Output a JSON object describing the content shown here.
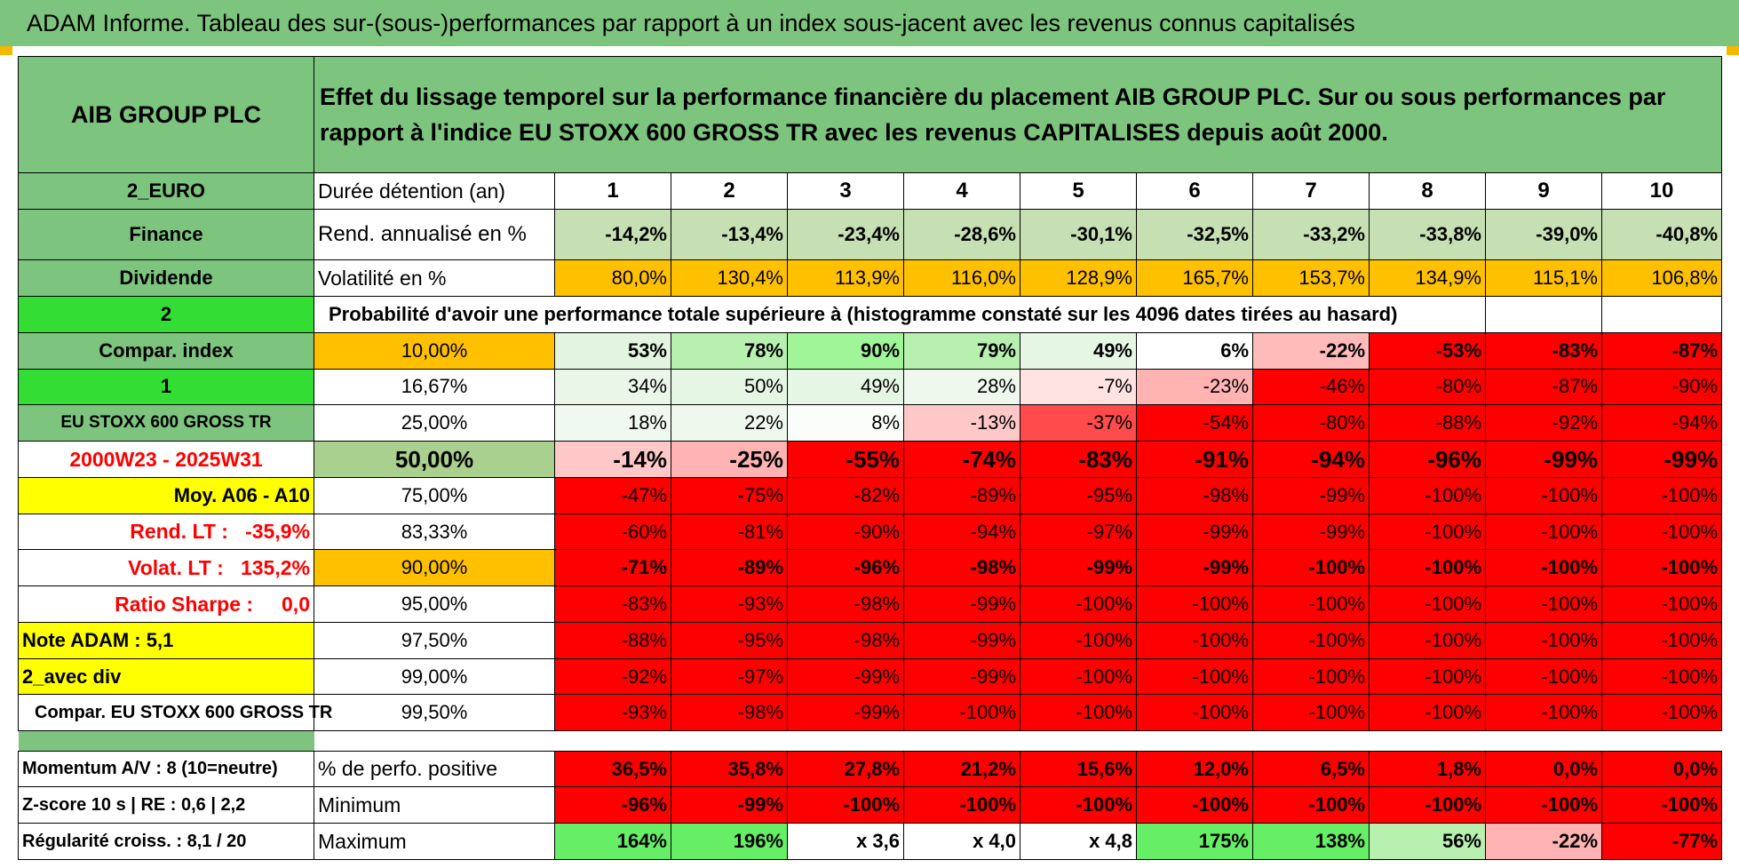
{
  "banner": "ADAM Informe. Tableau des sur-(sous-)performances par rapport à un index sous-jacent avec les revenus connus capitalisés",
  "header": {
    "company": "AIB GROUP PLC",
    "description": "Effet du lissage temporel sur la performance financière du placement AIB GROUP PLC. Sur ou sous performances par rapport à l'indice EU STOXX 600 GROSS TR avec les revenus CAPITALISES depuis août 2000."
  },
  "colors": {
    "green_header": "#7dc57f",
    "bright_green": "#33dd33",
    "yellow": "#ffff00",
    "orange": "#ffc000",
    "red": "#ff0000"
  },
  "rows": [
    {
      "left": "2_EURO",
      "left_bg": "#7dc57f",
      "label": "Durée détention (an)",
      "cells": [
        {
          "t": "1",
          "bg": "#ffffff"
        },
        {
          "t": "2",
          "bg": "#ffffff"
        },
        {
          "t": "3",
          "bg": "#ffffff"
        },
        {
          "t": "4",
          "bg": "#ffffff"
        },
        {
          "t": "5",
          "bg": "#ffffff"
        },
        {
          "t": "6",
          "bg": "#ffffff"
        },
        {
          "t": "7",
          "bg": "#ffffff"
        },
        {
          "t": "8",
          "bg": "#ffffff"
        },
        {
          "t": "9",
          "bg": "#ffffff"
        },
        {
          "t": "10",
          "bg": "#ffffff"
        }
      ]
    },
    {
      "left": "Finance",
      "left_bg": "#7dc57f",
      "label": "Rend. annualisé en %",
      "cells": [
        {
          "t": "-14,2%",
          "bg": "#c6e0b4"
        },
        {
          "t": "-13,4%",
          "bg": "#c6e0b4"
        },
        {
          "t": "-23,4%",
          "bg": "#c6e0b4"
        },
        {
          "t": "-28,6%",
          "bg": "#c6e0b4"
        },
        {
          "t": "-30,1%",
          "bg": "#c6e0b4"
        },
        {
          "t": "-32,5%",
          "bg": "#c6e0b4"
        },
        {
          "t": "-33,2%",
          "bg": "#c6e0b4"
        },
        {
          "t": "-33,8%",
          "bg": "#c6e0b4"
        },
        {
          "t": "-39,0%",
          "bg": "#c6e0b4"
        },
        {
          "t": "-40,8%",
          "bg": "#c6e0b4"
        }
      ]
    },
    {
      "left": "Dividende",
      "left_bg": "#7dc57f",
      "label": "Volatilité en %",
      "cells": [
        {
          "t": "80,0%",
          "bg": "#ffc000"
        },
        {
          "t": "130,4%",
          "bg": "#ffc000"
        },
        {
          "t": "113,9%",
          "bg": "#ffc000"
        },
        {
          "t": "116,0%",
          "bg": "#ffc000"
        },
        {
          "t": "128,9%",
          "bg": "#ffc000"
        },
        {
          "t": "165,7%",
          "bg": "#ffc000"
        },
        {
          "t": "153,7%",
          "bg": "#ffc000"
        },
        {
          "t": "134,9%",
          "bg": "#ffc000"
        },
        {
          "t": "115,1%",
          "bg": "#ffc000"
        },
        {
          "t": "106,8%",
          "bg": "#ffc000"
        }
      ]
    },
    {
      "left": "2",
      "left_bg": "#33dd33",
      "label": "Probabilité d'avoir une performance totale supérieure à (histogramme constaté sur les 4096 dates tirées au hasard)",
      "span": true
    },
    {
      "left": "Compar. index",
      "left_bg": "#7dc57f",
      "label": "10,00%",
      "label_bg": "#ffc000",
      "cells": [
        {
          "t": "53%",
          "bg": "#e2f5df"
        },
        {
          "t": "78%",
          "bg": "#b8f0b0"
        },
        {
          "t": "90%",
          "bg": "#9ff598"
        },
        {
          "t": "79%",
          "bg": "#b8f0b0"
        },
        {
          "t": "49%",
          "bg": "#e6f6e4"
        },
        {
          "t": "6%",
          "bg": "#ffffff"
        },
        {
          "t": "-22%",
          "bg": "#ffbaba"
        },
        {
          "t": "-53%",
          "bg": "#ff0000"
        },
        {
          "t": "-83%",
          "bg": "#ff0000"
        },
        {
          "t": "-87%",
          "bg": "#ff0000"
        }
      ]
    },
    {
      "left": "1",
      "left_bg": "#33dd33",
      "label": "16,67%",
      "label_bg": "#ffffff",
      "cells": [
        {
          "t": "34%",
          "bg": "#eaf7e8"
        },
        {
          "t": "50%",
          "bg": "#e6f6e4"
        },
        {
          "t": "49%",
          "bg": "#e6f6e4"
        },
        {
          "t": "28%",
          "bg": "#eef8ed"
        },
        {
          "t": "-7%",
          "bg": "#ffe2e2"
        },
        {
          "t": "-23%",
          "bg": "#ffb3b3"
        },
        {
          "t": "-46%",
          "bg": "#ff0000"
        },
        {
          "t": "-80%",
          "bg": "#ff0000"
        },
        {
          "t": "-87%",
          "bg": "#ff0000"
        },
        {
          "t": "-90%",
          "bg": "#ff0000"
        }
      ]
    },
    {
      "left": "EU STOXX 600 GROSS TR",
      "left_bg": "#7dc57f",
      "label": "25,00%",
      "label_bg": "#ffffff",
      "cells": [
        {
          "t": "18%",
          "bg": "#f0f9ef"
        },
        {
          "t": "22%",
          "bg": "#eef8ed"
        },
        {
          "t": "8%",
          "bg": "#fafdf9"
        },
        {
          "t": "-13%",
          "bg": "#ffc8c8"
        },
        {
          "t": "-37%",
          "bg": "#ff4b4b"
        },
        {
          "t": "-54%",
          "bg": "#ff0000"
        },
        {
          "t": "-80%",
          "bg": "#ff0000"
        },
        {
          "t": "-88%",
          "bg": "#ff0000"
        },
        {
          "t": "-92%",
          "bg": "#ff0000"
        },
        {
          "t": "-94%",
          "bg": "#ff0000"
        }
      ]
    },
    {
      "left": "2000W23 - 2025W31",
      "left_bg": "#ffffff",
      "left_color": "#ff0000",
      "label": "50,00%",
      "label_bg": "#a9d08e",
      "big": true,
      "cells": [
        {
          "t": "-14%",
          "bg": "#ffc8c8"
        },
        {
          "t": "-25%",
          "bg": "#ffb3b3"
        },
        {
          "t": "-55%",
          "bg": "#ff0000"
        },
        {
          "t": "-74%",
          "bg": "#ff0000"
        },
        {
          "t": "-83%",
          "bg": "#ff0000"
        },
        {
          "t": "-91%",
          "bg": "#ff0000"
        },
        {
          "t": "-94%",
          "bg": "#ff0000"
        },
        {
          "t": "-96%",
          "bg": "#ff0000"
        },
        {
          "t": "-99%",
          "bg": "#ff0000"
        },
        {
          "t": "-99%",
          "bg": "#ff0000"
        }
      ]
    },
    {
      "left": "Moy. A06 - A10",
      "left_bg": "#ffff00",
      "left_align": "right",
      "label": "75,00%",
      "label_bg": "#ffffff",
      "cells": [
        {
          "t": "-47%",
          "bg": "#ff0000"
        },
        {
          "t": "-75%",
          "bg": "#ff0000"
        },
        {
          "t": "-82%",
          "bg": "#ff0000"
        },
        {
          "t": "-89%",
          "bg": "#ff0000"
        },
        {
          "t": "-95%",
          "bg": "#ff0000"
        },
        {
          "t": "-98%",
          "bg": "#ff0000"
        },
        {
          "t": "-99%",
          "bg": "#ff0000"
        },
        {
          "t": "-100%",
          "bg": "#ff0000"
        },
        {
          "t": "-100%",
          "bg": "#ff0000"
        },
        {
          "t": "-100%",
          "bg": "#ff0000"
        }
      ]
    },
    {
      "left": "Rend. LT :   -35,9%",
      "left_bg": "#ffffff",
      "left_color": "#ff0000",
      "left_align": "right",
      "label": "83,33%",
      "label_bg": "#ffffff",
      "cells": [
        {
          "t": "-60%",
          "bg": "#ff0000"
        },
        {
          "t": "-81%",
          "bg": "#ff0000"
        },
        {
          "t": "-90%",
          "bg": "#ff0000"
        },
        {
          "t": "-94%",
          "bg": "#ff0000"
        },
        {
          "t": "-97%",
          "bg": "#ff0000"
        },
        {
          "t": "-99%",
          "bg": "#ff0000"
        },
        {
          "t": "-99%",
          "bg": "#ff0000"
        },
        {
          "t": "-100%",
          "bg": "#ff0000"
        },
        {
          "t": "-100%",
          "bg": "#ff0000"
        },
        {
          "t": "-100%",
          "bg": "#ff0000"
        }
      ]
    },
    {
      "left": "Volat. LT :   135,2%",
      "left_bg": "#ffffff",
      "left_color": "#ff0000",
      "left_align": "right",
      "label": "90,00%",
      "label_bg": "#ffc000",
      "bold": true,
      "cells": [
        {
          "t": "-71%",
          "bg": "#ff0000"
        },
        {
          "t": "-89%",
          "bg": "#ff0000"
        },
        {
          "t": "-96%",
          "bg": "#ff0000"
        },
        {
          "t": "-98%",
          "bg": "#ff0000"
        },
        {
          "t": "-99%",
          "bg": "#ff0000"
        },
        {
          "t": "-99%",
          "bg": "#ff0000"
        },
        {
          "t": "-100%",
          "bg": "#ff0000"
        },
        {
          "t": "-100%",
          "bg": "#ff0000"
        },
        {
          "t": "-100%",
          "bg": "#ff0000"
        },
        {
          "t": "-100%",
          "bg": "#ff0000"
        }
      ]
    },
    {
      "left": "Ratio Sharpe :     0,0",
      "left_bg": "#ffffff",
      "left_color": "#ff0000",
      "left_align": "right",
      "label": "95,00%",
      "label_bg": "#ffffff",
      "cells": [
        {
          "t": "-83%",
          "bg": "#ff0000"
        },
        {
          "t": "-93%",
          "bg": "#ff0000"
        },
        {
          "t": "-98%",
          "bg": "#ff0000"
        },
        {
          "t": "-99%",
          "bg": "#ff0000"
        },
        {
          "t": "-100%",
          "bg": "#ff0000"
        },
        {
          "t": "-100%",
          "bg": "#ff0000"
        },
        {
          "t": "-100%",
          "bg": "#ff0000"
        },
        {
          "t": "-100%",
          "bg": "#ff0000"
        },
        {
          "t": "-100%",
          "bg": "#ff0000"
        },
        {
          "t": "-100%",
          "bg": "#ff0000"
        }
      ]
    },
    {
      "left": "Note ADAM : 5,1",
      "left_bg": "#ffff00",
      "left_align": "left",
      "label": "97,50%",
      "label_bg": "#ffffff",
      "cells": [
        {
          "t": "-88%",
          "bg": "#ff0000"
        },
        {
          "t": "-95%",
          "bg": "#ff0000"
        },
        {
          "t": "-98%",
          "bg": "#ff0000"
        },
        {
          "t": "-99%",
          "bg": "#ff0000"
        },
        {
          "t": "-100%",
          "bg": "#ff0000"
        },
        {
          "t": "-100%",
          "bg": "#ff0000"
        },
        {
          "t": "-100%",
          "bg": "#ff0000"
        },
        {
          "t": "-100%",
          "bg": "#ff0000"
        },
        {
          "t": "-100%",
          "bg": "#ff0000"
        },
        {
          "t": "-100%",
          "bg": "#ff0000"
        }
      ]
    },
    {
      "left": "2_avec div",
      "left_bg": "#ffff00",
      "left_align": "left",
      "label": "99,00%",
      "label_bg": "#ffffff",
      "cells": [
        {
          "t": "-92%",
          "bg": "#ff0000"
        },
        {
          "t": "-97%",
          "bg": "#ff0000"
        },
        {
          "t": "-99%",
          "bg": "#ff0000"
        },
        {
          "t": "-99%",
          "bg": "#ff0000"
        },
        {
          "t": "-100%",
          "bg": "#ff0000"
        },
        {
          "t": "-100%",
          "bg": "#ff0000"
        },
        {
          "t": "-100%",
          "bg": "#ff0000"
        },
        {
          "t": "-100%",
          "bg": "#ff0000"
        },
        {
          "t": "-100%",
          "bg": "#ff0000"
        },
        {
          "t": "-100%",
          "bg": "#ff0000"
        }
      ]
    },
    {
      "left": "Compar. EU STOXX 600 GROSS TR",
      "left_bg": "#ffffff",
      "left_align": "left",
      "label": "99,50%",
      "label_bg": "#ffffff",
      "cells": [
        {
          "t": "-93%",
          "bg": "#ff0000"
        },
        {
          "t": "-98%",
          "bg": "#ff0000"
        },
        {
          "t": "-99%",
          "bg": "#ff0000"
        },
        {
          "t": "-100%",
          "bg": "#ff0000"
        },
        {
          "t": "-100%",
          "bg": "#ff0000"
        },
        {
          "t": "-100%",
          "bg": "#ff0000"
        },
        {
          "t": "-100%",
          "bg": "#ff0000"
        },
        {
          "t": "-100%",
          "bg": "#ff0000"
        },
        {
          "t": "-100%",
          "bg": "#ff0000"
        },
        {
          "t": "-100%",
          "bg": "#ff0000"
        }
      ]
    },
    {
      "spacer": true
    },
    {
      "left": "Momentum A/V : 8 (10=neutre)",
      "left_bg": "#ffffff",
      "left_align": "left",
      "label": "% de perfo. positive",
      "bottom": true,
      "cells": [
        {
          "t": "36,5%",
          "bg": "#ff0000"
        },
        {
          "t": "35,8%",
          "bg": "#ff0000"
        },
        {
          "t": "27,8%",
          "bg": "#ff0000"
        },
        {
          "t": "21,2%",
          "bg": "#ff0000"
        },
        {
          "t": "15,6%",
          "bg": "#ff0000"
        },
        {
          "t": "12,0%",
          "bg": "#ff0000"
        },
        {
          "t": "6,5%",
          "bg": "#ff0000"
        },
        {
          "t": "1,8%",
          "bg": "#ff0000"
        },
        {
          "t": "0,0%",
          "bg": "#ff0000"
        },
        {
          "t": "0,0%",
          "bg": "#ff0000"
        }
      ]
    },
    {
      "left": "Z-score 10 s | RE : 0,6 | 2,2",
      "left_bg": "#ffffff",
      "left_align": "left",
      "label": "Minimum",
      "bottom": true,
      "cells": [
        {
          "t": "-96%",
          "bg": "#ff0000"
        },
        {
          "t": "-99%",
          "bg": "#ff0000"
        },
        {
          "t": "-100%",
          "bg": "#ff0000"
        },
        {
          "t": "-100%",
          "bg": "#ff0000"
        },
        {
          "t": "-100%",
          "bg": "#ff0000"
        },
        {
          "t": "-100%",
          "bg": "#ff0000"
        },
        {
          "t": "-100%",
          "bg": "#ff0000"
        },
        {
          "t": "-100%",
          "bg": "#ff0000"
        },
        {
          "t": "-100%",
          "bg": "#ff0000"
        },
        {
          "t": "-100%",
          "bg": "#ff0000"
        }
      ]
    },
    {
      "left": "Régularité croiss. : 8,1 / 20",
      "left_bg": "#ffffff",
      "left_align": "left",
      "label": "Maximum",
      "bottom": true,
      "cells": [
        {
          "t": "164%",
          "bg": "#66ee66"
        },
        {
          "t": "196%",
          "bg": "#66ee66"
        },
        {
          "t": "x 3,6",
          "bg": "#ffffff"
        },
        {
          "t": "x 4,0",
          "bg": "#ffffff"
        },
        {
          "t": "x 4,8",
          "bg": "#ffffff"
        },
        {
          "t": "175%",
          "bg": "#66ee66"
        },
        {
          "t": "138%",
          "bg": "#66ee66"
        },
        {
          "t": "56%",
          "bg": "#b8f0b0"
        },
        {
          "t": "-22%",
          "bg": "#ffb3b3"
        },
        {
          "t": "-77%",
          "bg": "#ff0000"
        }
      ]
    }
  ]
}
